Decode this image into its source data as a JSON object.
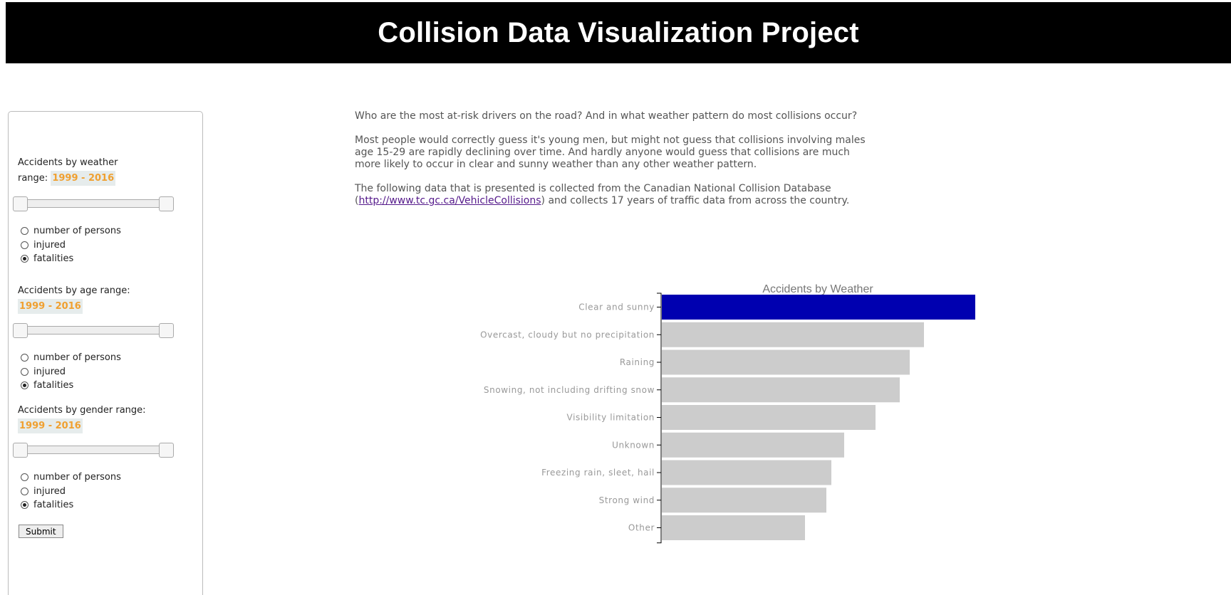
{
  "header": {
    "title": "Collision Data Visualization Project"
  },
  "controls": [
    {
      "label": "Accidents by weather range:",
      "label_line1": "Accidents by weather",
      "label_line2": "range:",
      "range_text": "1999 - 2016",
      "options": [
        "number of persons",
        "injured",
        "fatalities"
      ],
      "selected": 2
    },
    {
      "label": "Accidents by age range:",
      "range_text": "1999 - 2016",
      "options": [
        "number of persons",
        "injured",
        "fatalities"
      ],
      "selected": 2
    },
    {
      "label": "Accidents by gender range:",
      "range_text": "1999 - 2016",
      "options": [
        "number of persons",
        "injured",
        "fatalities"
      ],
      "selected": 2
    }
  ],
  "submit_label": "Submit",
  "intro": {
    "p1": "Who are the most at-risk drivers on the road? And in what weather pattern do most collisions occur?",
    "p2": "Most people would correctly guess it's young men, but might not guess that collisions involving males age 15-29 are rapidly declining over time. And hardly anyone would guess that collisions are much more likely to occur in clear and sunny weather than any other weather pattern.",
    "p3_before": "The following data that is presented is collected from the Canadian National Collision Database (",
    "link_text": "http://www.tc.gc.ca/VehicleCollisions",
    "p3_after": ") and collects 17 years of traffic data from across the country."
  },
  "chart_data": {
    "type": "bar",
    "orientation": "horizontal",
    "title": "Accidents by Weather",
    "categories": [
      "Clear and sunny",
      "Overcast, cloudy but no precipitation",
      "Raining",
      "Snowing, not including drifting snow",
      "Visibility limitation",
      "Unknown",
      "Freezing rain, sleet, hail",
      "Strong wind",
      "Other"
    ],
    "values": [
      440,
      368,
      348,
      334,
      300,
      256,
      238,
      231,
      201
    ],
    "highlight_index": 0,
    "colors": {
      "highlight": "#0000b0",
      "bar": "#cccccc",
      "axis": "#000000",
      "label": "#999999",
      "title": "#777777"
    }
  }
}
